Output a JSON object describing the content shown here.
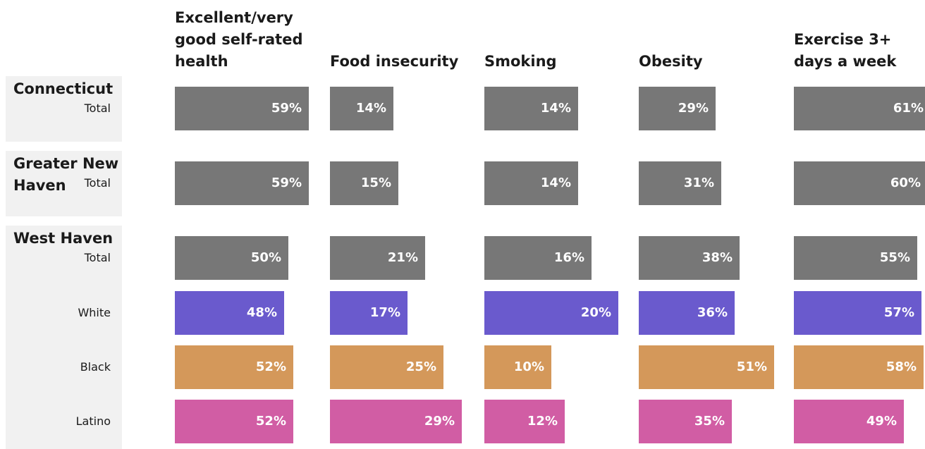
{
  "chart_data": {
    "type": "bar",
    "orientation": "horizontal",
    "metrics": [
      "Excellent/very good self-rated health",
      "Food insecurity",
      "Smoking",
      "Obesity",
      "Exercise 3+ days a week"
    ],
    "metric_lines": [
      [
        "Excellent/very",
        "good self-rated",
        "health"
      ],
      [
        "Food insecurity"
      ],
      [
        "Smoking"
      ],
      [
        "Obesity"
      ],
      [
        "Exercise 3+",
        "days a week"
      ]
    ],
    "groups": [
      {
        "name": "Connecticut",
        "name_lines": [
          "Connecticut"
        ],
        "rows": [
          {
            "label": "Total",
            "values": [
              59,
              14,
              14,
              29,
              61
            ]
          }
        ]
      },
      {
        "name": "Greater New Haven",
        "name_lines": [
          "Greater New",
          "Haven"
        ],
        "rows": [
          {
            "label": "Total",
            "values": [
              59,
              15,
              14,
              31,
              60
            ]
          }
        ]
      },
      {
        "name": "West Haven",
        "name_lines": [
          "West Haven"
        ],
        "rows": [
          {
            "label": "Total",
            "values": [
              50,
              21,
              16,
              38,
              55
            ]
          },
          {
            "label": "White",
            "values": [
              48,
              17,
              20,
              36,
              57
            ]
          },
          {
            "label": "Black",
            "values": [
              52,
              25,
              10,
              51,
              58
            ]
          },
          {
            "label": "Latino",
            "values": [
              52,
              29,
              12,
              35,
              49
            ]
          }
        ]
      }
    ],
    "value_suffix": "%",
    "colors": {
      "Total": "#777777",
      "White": "#6a5acd",
      "Black": "#d4985a",
      "Latino": "#d15da4"
    }
  }
}
